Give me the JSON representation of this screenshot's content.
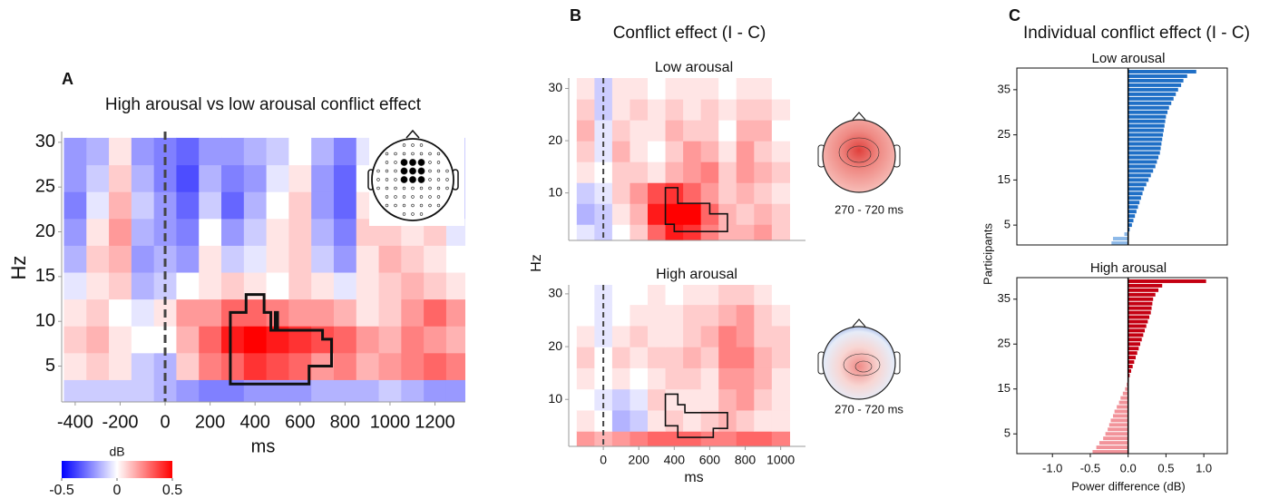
{
  "panels": [
    {
      "label": "A"
    },
    {
      "label": "B",
      "title": "Conflict effect (I - C)"
    },
    {
      "label": "C",
      "title": "Individual conflict effect (I - C)"
    }
  ],
  "chart_data": [
    {
      "type": "heatmap",
      "title": "High arousal vs low arousal conflict effect",
      "xlabel": "ms",
      "ylabel": "Hz",
      "x": [
        -400,
        -300,
        -200,
        -100,
        0,
        100,
        200,
        300,
        400,
        500,
        600,
        700,
        800,
        900,
        1000,
        1100,
        1200,
        1300
      ],
      "y": [
        2,
        5,
        8,
        11,
        14,
        17,
        20,
        23,
        26,
        29
      ],
      "z": [
        [
          -0.1,
          -0.1,
          -0.1,
          -0.1,
          -0.15,
          -0.2,
          -0.25,
          -0.25,
          -0.2,
          -0.2,
          -0.2,
          -0.15,
          -0.15,
          -0.15,
          -0.1,
          -0.15,
          -0.2,
          -0.2
        ],
        [
          0.05,
          0.1,
          0.05,
          -0.1,
          -0.15,
          0.1,
          0.25,
          0.3,
          0.4,
          0.35,
          0.3,
          0.2,
          0.25,
          0.15,
          0.2,
          0.25,
          0.3,
          0.25
        ],
        [
          0.1,
          0.15,
          0.05,
          0,
          0,
          0.15,
          0.3,
          0.45,
          0.5,
          0.45,
          0.4,
          0.35,
          0.3,
          0.2,
          0.15,
          0.25,
          0.2,
          0.15
        ],
        [
          0.05,
          0.1,
          0,
          -0.05,
          0.05,
          0.2,
          0.2,
          0.3,
          0.3,
          0.25,
          0.2,
          0.2,
          0.15,
          0.05,
          0.1,
          0.2,
          0.3,
          0.2
        ],
        [
          -0.05,
          0.05,
          0.1,
          -0.15,
          -0.1,
          0,
          0.05,
          0.1,
          0.05,
          0,
          0.1,
          0.05,
          -0.05,
          0.05,
          0.1,
          0.15,
          0.1,
          0.05
        ],
        [
          -0.15,
          0.1,
          0.15,
          -0.2,
          -0.15,
          -0.2,
          0.05,
          -0.1,
          -0.05,
          0.05,
          0.1,
          -0.1,
          -0.2,
          0.05,
          0.15,
          0.1,
          0.05,
          0
        ],
        [
          -0.2,
          0.05,
          0.2,
          -0.15,
          -0.2,
          -0.25,
          0,
          -0.2,
          -0.1,
          0.05,
          0.1,
          -0.15,
          -0.25,
          0.1,
          0.1,
          0.05,
          0.1,
          -0.05
        ],
        [
          -0.25,
          -0.05,
          0.15,
          -0.1,
          -0.2,
          -0.3,
          -0.1,
          -0.3,
          -0.15,
          0,
          0.1,
          -0.2,
          -0.3,
          0.05,
          0.05,
          0,
          0.1,
          -0.1
        ],
        [
          -0.2,
          -0.1,
          0.1,
          -0.15,
          -0.25,
          -0.35,
          -0.15,
          -0.25,
          -0.2,
          -0.05,
          0.05,
          -0.2,
          -0.3,
          0,
          0,
          0.05,
          0,
          -0.1
        ],
        [
          -0.2,
          -0.15,
          0.05,
          -0.2,
          -0.25,
          -0.3,
          -0.2,
          -0.2,
          -0.15,
          -0.1,
          0,
          -0.15,
          -0.25,
          -0.05,
          -0.05,
          0,
          0,
          -0.1
        ]
      ],
      "xlim": [
        -460,
        1335
      ],
      "ylim": [
        1,
        31.2
      ],
      "xticks": [
        -400,
        -200,
        0,
        200,
        400,
        600,
        800,
        1000,
        1200
      ],
      "yticks": [
        5,
        10,
        15,
        20,
        25,
        30
      ],
      "onset": 0,
      "clim": [
        -0.5,
        0.5
      ],
      "cmap": [
        "#0000ff",
        "#ffffff",
        "#ff0000"
      ],
      "cluster": [
        [
          290,
          3
        ],
        [
          640,
          3
        ],
        [
          640,
          5
        ],
        [
          740,
          5
        ],
        [
          740,
          8
        ],
        [
          700,
          8
        ],
        [
          700,
          9
        ],
        [
          500,
          9
        ],
        [
          500,
          11
        ],
        [
          490,
          11
        ],
        [
          490,
          9
        ],
        [
          470,
          9
        ],
        [
          470,
          11
        ],
        [
          440,
          11
        ],
        [
          440,
          13
        ],
        [
          360,
          13
        ],
        [
          360,
          11
        ],
        [
          290,
          11
        ]
      ],
      "colorbar": {
        "label": "dB",
        "lim": [
          -0.5,
          0.5
        ],
        "ticks": [
          -0.5,
          0,
          0.5
        ]
      }
    },
    {
      "type": "heatmap",
      "title": "Low arousal",
      "ylabel": "Hz",
      "x": [
        -100,
        0,
        100,
        200,
        300,
        400,
        500,
        600,
        700,
        800,
        900,
        1000
      ],
      "y": [
        2,
        6,
        10,
        14,
        18,
        22,
        26,
        30
      ],
      "z": [
        [
          -0.05,
          -0.1,
          0,
          0.1,
          0.3,
          0.45,
          0.4,
          0.25,
          0.15,
          0.15,
          0.2,
          0.1
        ],
        [
          -0.15,
          -0.1,
          0.05,
          0.15,
          0.45,
          0.55,
          0.5,
          0.3,
          0.15,
          0.1,
          0.15,
          0.1
        ],
        [
          -0.1,
          -0.05,
          0.1,
          0.2,
          0.35,
          0.4,
          0.3,
          0.2,
          0.1,
          0.15,
          0.1,
          0.05
        ],
        [
          0.05,
          0,
          0.1,
          0.1,
          0.05,
          0.15,
          0.2,
          0.25,
          0.1,
          0.2,
          0.15,
          0.1
        ],
        [
          0.1,
          -0.05,
          0.15,
          0.05,
          0,
          0.1,
          0.2,
          0.15,
          0.05,
          0.2,
          0.1,
          0.05
        ],
        [
          0.15,
          -0.05,
          0.1,
          0.05,
          0.05,
          0.15,
          0.1,
          0.1,
          0,
          0.15,
          0.15,
          0
        ],
        [
          0.1,
          -0.1,
          0.05,
          0.1,
          0.05,
          0.1,
          0.05,
          0.1,
          0.05,
          0.1,
          0.1,
          0.05
        ],
        [
          0.05,
          -0.1,
          0.05,
          0.05,
          0,
          0.05,
          0.05,
          0.05,
          0,
          0.05,
          0.05,
          0
        ]
      ],
      "xlim": [
        -195,
        1140
      ],
      "ylim": [
        0.9,
        32
      ],
      "yticks": [
        10,
        20,
        30
      ],
      "onset": 0,
      "clim": [
        -0.5,
        0.5
      ],
      "cmap": [
        "#0000ff",
        "#ffffff",
        "#ff0000"
      ],
      "cluster": [
        [
          350,
          11
        ],
        [
          420,
          11
        ],
        [
          420,
          8
        ],
        [
          600,
          8
        ],
        [
          600,
          6
        ],
        [
          700,
          6
        ],
        [
          700,
          2.6
        ],
        [
          400,
          2.6
        ],
        [
          400,
          4
        ],
        [
          350,
          4
        ]
      ],
      "topo_label": "270 - 720 ms"
    },
    {
      "type": "heatmap",
      "title": "High arousal",
      "xlabel": "ms",
      "x": [
        -100,
        0,
        100,
        200,
        300,
        400,
        500,
        600,
        700,
        800,
        900,
        1000
      ],
      "y": [
        2,
        6,
        10,
        14,
        18,
        22,
        26,
        30
      ],
      "z": [
        [
          0.2,
          0.15,
          0.2,
          0.25,
          0.3,
          0.3,
          0.3,
          0.25,
          0.25,
          0.3,
          0.3,
          0.25
        ],
        [
          0.05,
          0,
          -0.15,
          -0.1,
          0.05,
          0.1,
          0.05,
          0.1,
          0.15,
          0.1,
          0.05,
          0.05
        ],
        [
          0,
          -0.05,
          -0.1,
          -0.05,
          0.1,
          0.05,
          0.05,
          0.05,
          0.15,
          0.2,
          0.1,
          0.05
        ],
        [
          0.05,
          0,
          0.05,
          0,
          0.05,
          0.1,
          0.1,
          0.05,
          0.2,
          0.2,
          0.15,
          0.05
        ],
        [
          0.1,
          0,
          0.1,
          0.05,
          0.1,
          0.1,
          0.15,
          0.1,
          0.25,
          0.25,
          0.15,
          0.1
        ],
        [
          0.05,
          -0.05,
          0.05,
          0.1,
          0.05,
          0.05,
          0.1,
          0.15,
          0.25,
          0.2,
          0.1,
          0.1
        ],
        [
          0,
          -0.05,
          0,
          0.05,
          0.05,
          0.05,
          0.1,
          0.1,
          0.15,
          0.2,
          0.1,
          0.05
        ],
        [
          0,
          -0.05,
          0,
          0,
          0.05,
          0,
          0.05,
          0.05,
          0.1,
          0.1,
          0.05,
          0
        ]
      ],
      "xlim": [
        -195,
        1140
      ],
      "ylim": [
        1.1,
        31.7
      ],
      "xticks": [
        0,
        200,
        400,
        600,
        800,
        1000
      ],
      "yticks": [
        10,
        20,
        30
      ],
      "onset": 0,
      "clim": [
        -0.5,
        0.5
      ],
      "cmap": [
        "#0000ff",
        "#ffffff",
        "#ff0000"
      ],
      "cluster": [
        [
          350,
          11
        ],
        [
          420,
          11
        ],
        [
          420,
          9
        ],
        [
          460,
          9
        ],
        [
          460,
          7.5
        ],
        [
          700,
          7.5
        ],
        [
          700,
          4.5
        ],
        [
          620,
          4.5
        ],
        [
          620,
          2.8
        ],
        [
          420,
          2.8
        ],
        [
          420,
          5
        ],
        [
          350,
          5
        ]
      ],
      "topo_label": "270 - 720 ms"
    },
    {
      "type": "barh",
      "title": "Low arousal",
      "ylabel": "Participants",
      "y": [
        1,
        2,
        3,
        4,
        5,
        6,
        7,
        8,
        9,
        10,
        11,
        12,
        13,
        14,
        15,
        16,
        17,
        18,
        19,
        20,
        21,
        22,
        23,
        24,
        25,
        26,
        27,
        28,
        29,
        30,
        31,
        32,
        33,
        34,
        35,
        36,
        37,
        38,
        39
      ],
      "values": [
        -0.22,
        -0.2,
        -0.05,
        0.02,
        0.05,
        0.07,
        0.09,
        0.11,
        0.13,
        0.15,
        0.17,
        0.19,
        0.21,
        0.24,
        0.27,
        0.3,
        0.33,
        0.36,
        0.38,
        0.4,
        0.42,
        0.43,
        0.44,
        0.45,
        0.46,
        0.47,
        0.48,
        0.49,
        0.5,
        0.52,
        0.54,
        0.57,
        0.6,
        0.63,
        0.66,
        0.7,
        0.73,
        0.78,
        0.9
      ],
      "positive_color": "#1f6fc6",
      "negative_color": "#8db9e8",
      "xlim": [
        -1.47,
        1.31
      ],
      "ylim": [
        0.6,
        39.8
      ],
      "yticks": [
        5,
        15,
        25,
        35
      ]
    },
    {
      "type": "barh",
      "title": "High arousal",
      "xlabel": "Power difference (dB)",
      "y": [
        1,
        2,
        3,
        4,
        5,
        6,
        7,
        8,
        9,
        10,
        11,
        12,
        13,
        14,
        15,
        16,
        17,
        18,
        19,
        20,
        21,
        22,
        23,
        24,
        25,
        26,
        27,
        28,
        29,
        30,
        31,
        32,
        33,
        34,
        35,
        36,
        37,
        38,
        39
      ],
      "values": [
        -0.47,
        -0.42,
        -0.38,
        -0.33,
        -0.3,
        -0.27,
        -0.25,
        -0.23,
        -0.2,
        -0.18,
        -0.15,
        -0.12,
        -0.1,
        -0.07,
        -0.04,
        -0.02,
        0.01,
        0.02,
        0.04,
        0.06,
        0.08,
        0.1,
        0.12,
        0.14,
        0.16,
        0.18,
        0.2,
        0.22,
        0.24,
        0.26,
        0.28,
        0.3,
        0.31,
        0.32,
        0.33,
        0.36,
        0.4,
        0.45,
        1.03
      ],
      "positive_color": "#c40012",
      "negative_color": "#f2939a",
      "xlim": [
        -1.47,
        1.31
      ],
      "ylim": [
        0.6,
        39.8
      ],
      "yticks": [
        5,
        15,
        25,
        35
      ],
      "xticks": [
        {
          "value": -1,
          "label": "-1.0"
        },
        -0.5,
        {
          "value": 0,
          "label": "0.0"
        },
        0.5,
        {
          "value": 1,
          "label": "1.0"
        }
      ]
    }
  ]
}
